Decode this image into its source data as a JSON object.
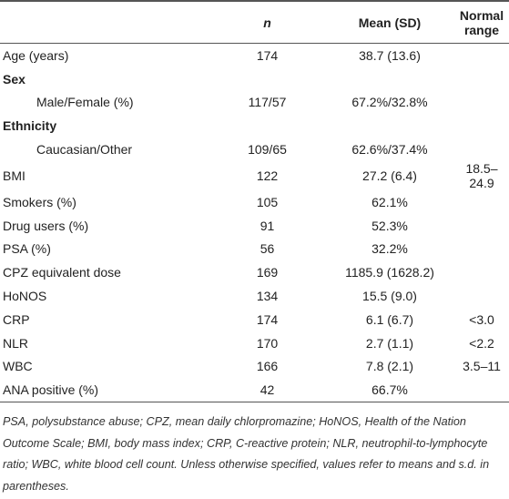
{
  "table": {
    "header": {
      "n": "n",
      "mean": "Mean (SD)",
      "range": "Normal range"
    },
    "rows": [
      {
        "label": "Age (years)",
        "n": "174",
        "mean": "38.7 (13.6)"
      },
      {
        "label": "Sex",
        "rows": [
          {
            "label": "Male/Female (%)",
            "n": "117/57",
            "mean": "67.2%/32.8%"
          }
        ]
      },
      {
        "label": "Ethnicity",
        "rows": [
          {
            "label": "Caucasian/Other",
            "n": "109/65",
            "mean": "62.6%/37.4%"
          }
        ]
      },
      {
        "label": "BMI",
        "n": "122",
        "mean": "27.2 (6.4)",
        "range": "18.5–24.9"
      },
      {
        "label": "Smokers (%)",
        "n": "105",
        "mean": "62.1%"
      },
      {
        "label": "Drug users (%)",
        "n": "91",
        "mean": "52.3%"
      },
      {
        "label": "PSA (%)",
        "n": "56",
        "mean": "32.2%"
      },
      {
        "label": "CPZ equivalent dose",
        "n": "169",
        "mean": "1185.9 (1628.2)"
      },
      {
        "label": "HoNOS",
        "n": "134",
        "mean": "15.5 (9.0)"
      },
      {
        "label": "CRP",
        "n": "174",
        "mean": "6.1 (6.7)",
        "range": "<3.0"
      },
      {
        "label": "NLR",
        "n": "170",
        "mean": "2.7 (1.1)",
        "range": "<2.2"
      },
      {
        "label": "WBC",
        "n": "166",
        "mean": "7.8 (2.1)",
        "range": "3.5–11"
      },
      {
        "label": "ANA positive (%)",
        "n": "42",
        "mean": "66.7%"
      }
    ]
  },
  "footnote": "PSA, polysubstance abuse; CPZ, mean daily chlorpromazine; HoNOS, Health of the Nation Outcome Scale; BMI, body mass index; CRP, C-reactive protein; NLR, neutrophil-to-lymphocyte ratio; WBC, white blood cell count. Unless otherwise specified, values refer to means and s.d. in parentheses."
}
